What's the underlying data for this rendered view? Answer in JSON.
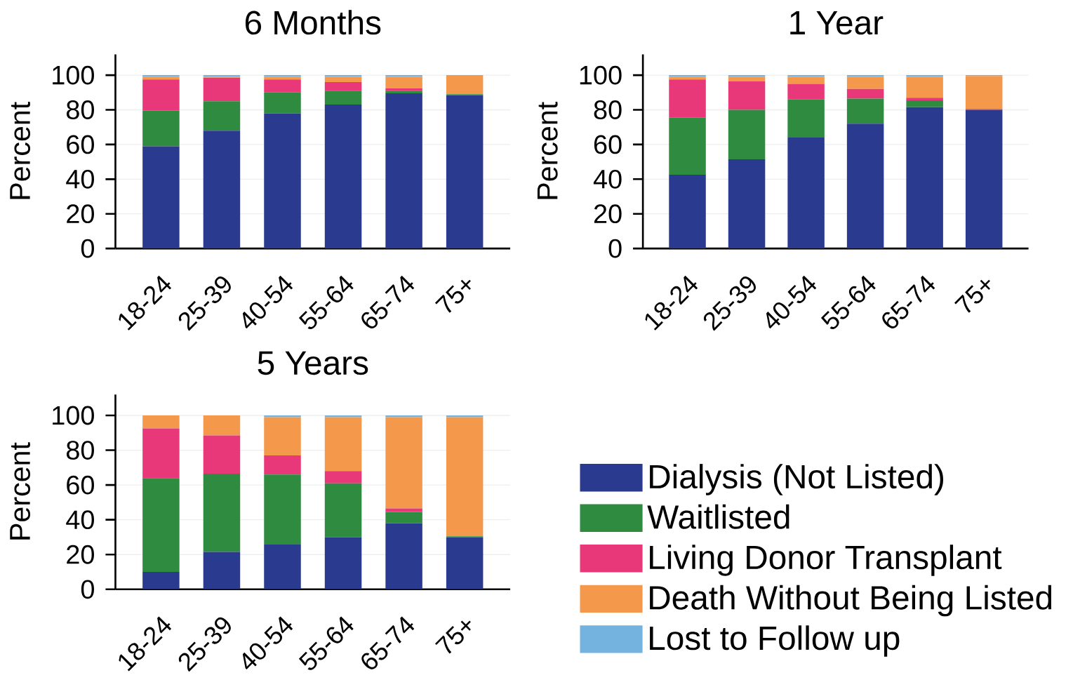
{
  "chart_data": [
    {
      "type": "bar",
      "title": "6 Months",
      "ylabel": "Percent",
      "categories": [
        "18-24",
        "25-39",
        "40-54",
        "55-64",
        "65-74",
        "75+"
      ],
      "stacked": true,
      "grid": "y",
      "ylim": [
        0,
        112
      ],
      "yticks": [
        0,
        20,
        40,
        60,
        80,
        100
      ],
      "legend": "bottom right",
      "series": [
        {
          "name": "Dialysis (Not Listed)",
          "color": "#2a3b8f",
          "values": [
            59,
            68,
            78,
            83,
            89.5,
            88.5
          ]
        },
        {
          "name": "Waitlisted",
          "color": "#2e8b3f",
          "values": [
            20.5,
            17,
            12,
            8,
            1.5,
            0.5
          ]
        },
        {
          "name": "Living Donor Transplant",
          "color": "#e9387a",
          "values": [
            18,
            13.5,
            7.5,
            5,
            1.5,
            0
          ]
        },
        {
          "name": "Death Without Being Listed",
          "color": "#f4994b",
          "values": [
            1.5,
            0.5,
            1.5,
            3,
            6.5,
            11
          ]
        },
        {
          "name": "Lost to Follow up",
          "color": "#74b3e0",
          "values": [
            1,
            1,
            1,
            1,
            1,
            0
          ]
        }
      ]
    },
    {
      "type": "bar",
      "title": "1 Year",
      "ylabel": "Percent",
      "categories": [
        "18-24",
        "25-39",
        "40-54",
        "55-64",
        "65-74",
        "75+"
      ],
      "stacked": true,
      "grid": "y",
      "ylim": [
        0,
        112
      ],
      "yticks": [
        0,
        20,
        40,
        60,
        80,
        100
      ],
      "series": [
        {
          "color": "#2a3b8f",
          "values": [
            42.5,
            51.5,
            64,
            72,
            81.5,
            80
          ]
        },
        {
          "color": "#2e8b3f",
          "values": [
            33,
            28.5,
            22,
            14.5,
            4,
            0
          ]
        },
        {
          "color": "#e9387a",
          "values": [
            22,
            16.5,
            9,
            5.5,
            1.5,
            0.5
          ]
        },
        {
          "color": "#f4994b",
          "values": [
            1.5,
            2.5,
            4,
            7,
            12,
            19
          ]
        },
        {
          "color": "#74b3e0",
          "values": [
            1,
            1,
            1,
            1,
            1,
            0.5
          ]
        }
      ]
    },
    {
      "type": "bar",
      "title": "5 Years",
      "ylabel": "Percent",
      "categories": [
        "18-24",
        "25-39",
        "40-54",
        "55-64",
        "65-74",
        "75+"
      ],
      "stacked": true,
      "grid": "y",
      "ylim": [
        0,
        112
      ],
      "yticks": [
        0,
        20,
        40,
        60,
        80,
        100
      ],
      "series": [
        {
          "color": "#2a3b8f",
          "values": [
            10,
            21.5,
            26,
            30,
            38,
            30
          ]
        },
        {
          "color": "#2e8b3f",
          "values": [
            54,
            45,
            40,
            31,
            6.5,
            0.5
          ]
        },
        {
          "color": "#e9387a",
          "values": [
            28.5,
            22,
            11,
            7,
            2,
            0
          ]
        },
        {
          "color": "#f4994b",
          "values": [
            7.5,
            11.5,
            22,
            31,
            52.5,
            68.5
          ]
        },
        {
          "color": "#74b3e0",
          "values": [
            0,
            0,
            1,
            1,
            1,
            1
          ]
        }
      ]
    }
  ]
}
